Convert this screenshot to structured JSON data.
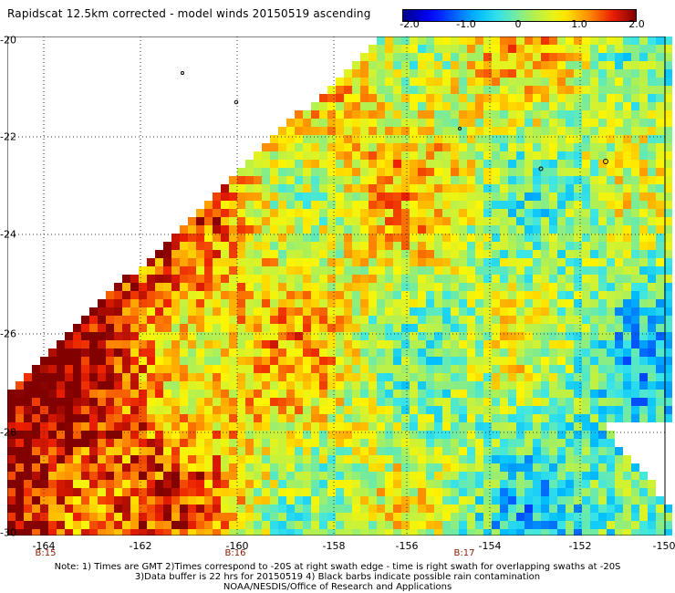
{
  "title": "Rapidscat 12.5km corrected - model winds 20150519 ascending",
  "colorbar": {
    "ticks": [
      "-2.0",
      "-1.0",
      "0",
      "1.0",
      "2.0"
    ],
    "range": [
      -2.0,
      2.0
    ]
  },
  "map": {
    "lat_labels": [
      "-20",
      "-22",
      "-24",
      "-26",
      "-28",
      "-30"
    ],
    "lon_labels": [
      "-164",
      "-162",
      "-160",
      "-158",
      "-156",
      "-154",
      "-152",
      "-150"
    ],
    "time_labels": [
      "B:15",
      "B:16",
      "B:17"
    ]
  },
  "notes": [
    "Note: 1) Times are GMT 2)Times correspond to -20S at right swath edge - time is right swath for overlapping swaths at -20S",
    "3)Data buffer is 22 hrs for 20150519 4) Black barbs indicate possible rain contamination",
    "NOAA/NESDIS/Office of Research and Applications"
  ]
}
